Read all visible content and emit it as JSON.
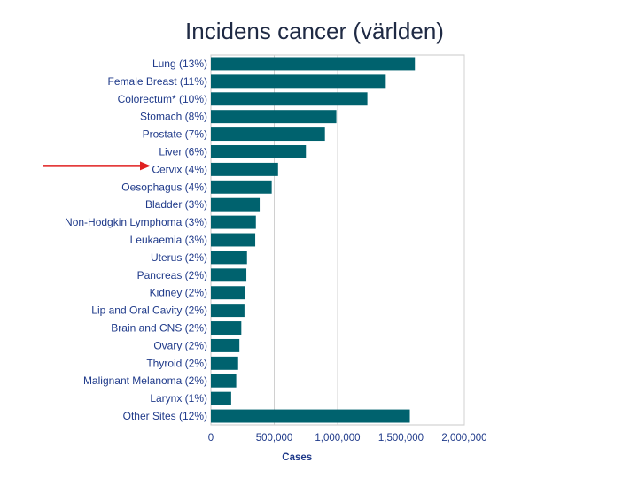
{
  "slide": {
    "title": "Incidens cancer (världen)"
  },
  "chart_data": {
    "type": "bar",
    "orientation": "horizontal",
    "title": "",
    "xlabel": "Cases",
    "ylabel": "",
    "xlim": [
      0,
      2000000
    ],
    "x_ticks": [
      0,
      500000,
      1000000,
      1500000,
      2000000
    ],
    "x_tick_labels": [
      "0",
      "500,000",
      "1,000,000",
      "1,500,000",
      "2,000,000"
    ],
    "grid": true,
    "bar_color": "#00626e",
    "highlight_color": "#e02020",
    "highlighted_category": "Cervix (4%)",
    "categories": [
      "Lung (13%)",
      "Female Breast (11%)",
      "Colorectum* (10%)",
      "Stomach (8%)",
      "Prostate (7%)",
      "Liver (6%)",
      "Cervix (4%)",
      "Oesophagus (4%)",
      "Bladder (3%)",
      "Non-Hodgkin Lymphoma (3%)",
      "Leukaemia (3%)",
      "Uterus (2%)",
      "Pancreas (2%)",
      "Kidney (2%)",
      "Lip and Oral Cavity (2%)",
      "Brain and CNS (2%)",
      "Ovary (2%)",
      "Thyroid (2%)",
      "Malignant Melanoma (2%)",
      "Larynx (1%)",
      "Other Sites (12%)"
    ],
    "values": [
      1610000,
      1380000,
      1235000,
      990000,
      900000,
      750000,
      530000,
      480000,
      385000,
      355000,
      350000,
      285000,
      280000,
      270000,
      265000,
      240000,
      225000,
      215000,
      200000,
      160000,
      1570000
    ]
  }
}
